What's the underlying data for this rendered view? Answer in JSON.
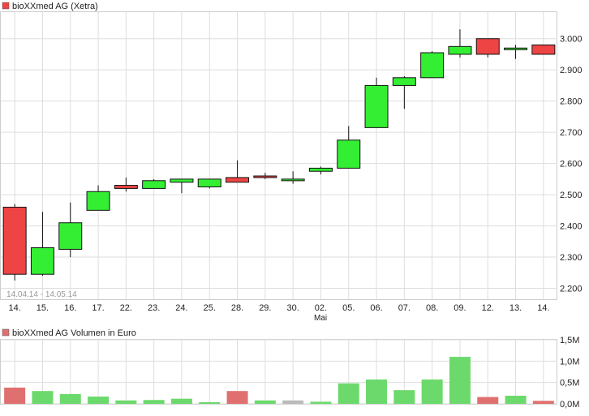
{
  "chart_data": [
    {
      "type": "candlestick",
      "legend": "bioXXmed AG (Xetra)",
      "date_range_label": "14.04.14 - 14.05.14",
      "month_label": "Mai",
      "categories": [
        "14.",
        "15.",
        "16.",
        "17.",
        "22.",
        "23.",
        "24.",
        "25.",
        "28.",
        "29.",
        "30.",
        "02.",
        "05.",
        "06.",
        "07.",
        "08.",
        "09.",
        "12.",
        "13.",
        "14."
      ],
      "yticks": [
        2.2,
        2.3,
        2.4,
        2.5,
        2.6,
        2.7,
        2.8,
        2.9,
        3.0
      ],
      "ytick_labels": [
        "2.200",
        "2.300",
        "2.400",
        "2.500",
        "2.600",
        "2.700",
        "2.800",
        "2.900",
        "3.000"
      ],
      "ylim": [
        2.165,
        3.085
      ],
      "candles": [
        {
          "o": 2.46,
          "h": 2.47,
          "l": 2.225,
          "c": 2.245
        },
        {
          "o": 2.245,
          "h": 2.445,
          "l": 2.24,
          "c": 2.33
        },
        {
          "o": 2.325,
          "h": 2.475,
          "l": 2.3,
          "c": 2.41
        },
        {
          "o": 2.45,
          "h": 2.53,
          "l": 2.45,
          "c": 2.51
        },
        {
          "o": 2.53,
          "h": 2.555,
          "l": 2.51,
          "c": 2.52
        },
        {
          "o": 2.52,
          "h": 2.55,
          "l": 2.52,
          "c": 2.545
        },
        {
          "o": 2.54,
          "h": 2.55,
          "l": 2.505,
          "c": 2.55
        },
        {
          "o": 2.525,
          "h": 2.55,
          "l": 2.52,
          "c": 2.55
        },
        {
          "o": 2.555,
          "h": 2.61,
          "l": 2.54,
          "c": 2.54
        },
        {
          "o": 2.56,
          "h": 2.57,
          "l": 2.55,
          "c": 2.555
        },
        {
          "o": 2.545,
          "h": 2.575,
          "l": 2.535,
          "c": 2.55
        },
        {
          "o": 2.575,
          "h": 2.59,
          "l": 2.565,
          "c": 2.585
        },
        {
          "o": 2.585,
          "h": 2.72,
          "l": 2.585,
          "c": 2.675
        },
        {
          "o": 2.715,
          "h": 2.875,
          "l": 2.715,
          "c": 2.85
        },
        {
          "o": 2.85,
          "h": 2.88,
          "l": 2.775,
          "c": 2.875
        },
        {
          "o": 2.875,
          "h": 2.96,
          "l": 2.875,
          "c": 2.955
        },
        {
          "o": 2.95,
          "h": 3.03,
          "l": 2.94,
          "c": 2.975
        },
        {
          "o": 3.0,
          "h": 3.0,
          "l": 2.94,
          "c": 2.95
        },
        {
          "o": 2.965,
          "h": 2.98,
          "l": 2.935,
          "c": 2.97
        },
        {
          "o": 2.98,
          "h": 2.98,
          "l": 2.95,
          "c": 2.95
        }
      ]
    },
    {
      "type": "bar",
      "legend": "bioXXmed AG Volumen in Euro",
      "categories": [
        "14.",
        "15.",
        "16.",
        "17.",
        "22.",
        "23.",
        "24.",
        "25.",
        "28.",
        "29.",
        "30.",
        "02.",
        "05.",
        "06.",
        "07.",
        "08.",
        "09.",
        "12.",
        "13.",
        "14."
      ],
      "values": [
        0.38,
        0.3,
        0.23,
        0.17,
        0.08,
        0.09,
        0.12,
        0.04,
        0.3,
        0.08,
        0.08,
        0.05,
        0.48,
        0.57,
        0.32,
        0.57,
        1.1,
        0.16,
        0.19,
        0.07
      ],
      "bar_status": [
        "down",
        "up",
        "up",
        "up",
        "up",
        "up",
        "up",
        "up",
        "down",
        "up",
        "flat",
        "up",
        "up",
        "up",
        "up",
        "up",
        "up",
        "down",
        "up",
        "down"
      ],
      "yticks": [
        0,
        0.5,
        1.0,
        1.5
      ],
      "ytick_labels": [
        "0,0M",
        "0,5M",
        "1,0M",
        "1,5M"
      ],
      "ylim": [
        0,
        1.5
      ]
    }
  ],
  "colors": {
    "up": "#33ee33",
    "down": "#ee4444",
    "vol_up": "#6cd96c",
    "vol_down": "#e07070",
    "vol_flat": "#bbbbbb",
    "grid": "#dddddd"
  }
}
